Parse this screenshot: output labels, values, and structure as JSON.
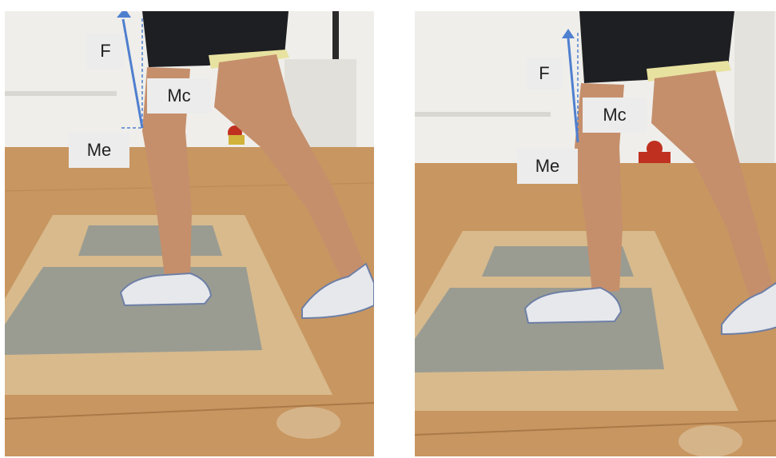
{
  "figure": {
    "panels": [
      {
        "id": "left",
        "labels": {
          "force": "F",
          "moment_c": "Mc",
          "moment_e": "Me"
        }
      },
      {
        "id": "right",
        "labels": {
          "force": "F",
          "moment_c": "Mc",
          "moment_e": "Me"
        }
      }
    ]
  },
  "colors": {
    "arrow": "#4f7fcf",
    "label_box": "#ececec",
    "floor": "#c89660",
    "plate": "#9a9c92",
    "wall": "#efeeea",
    "skin": "#c58f6c",
    "shorts": "#1e1f22"
  }
}
